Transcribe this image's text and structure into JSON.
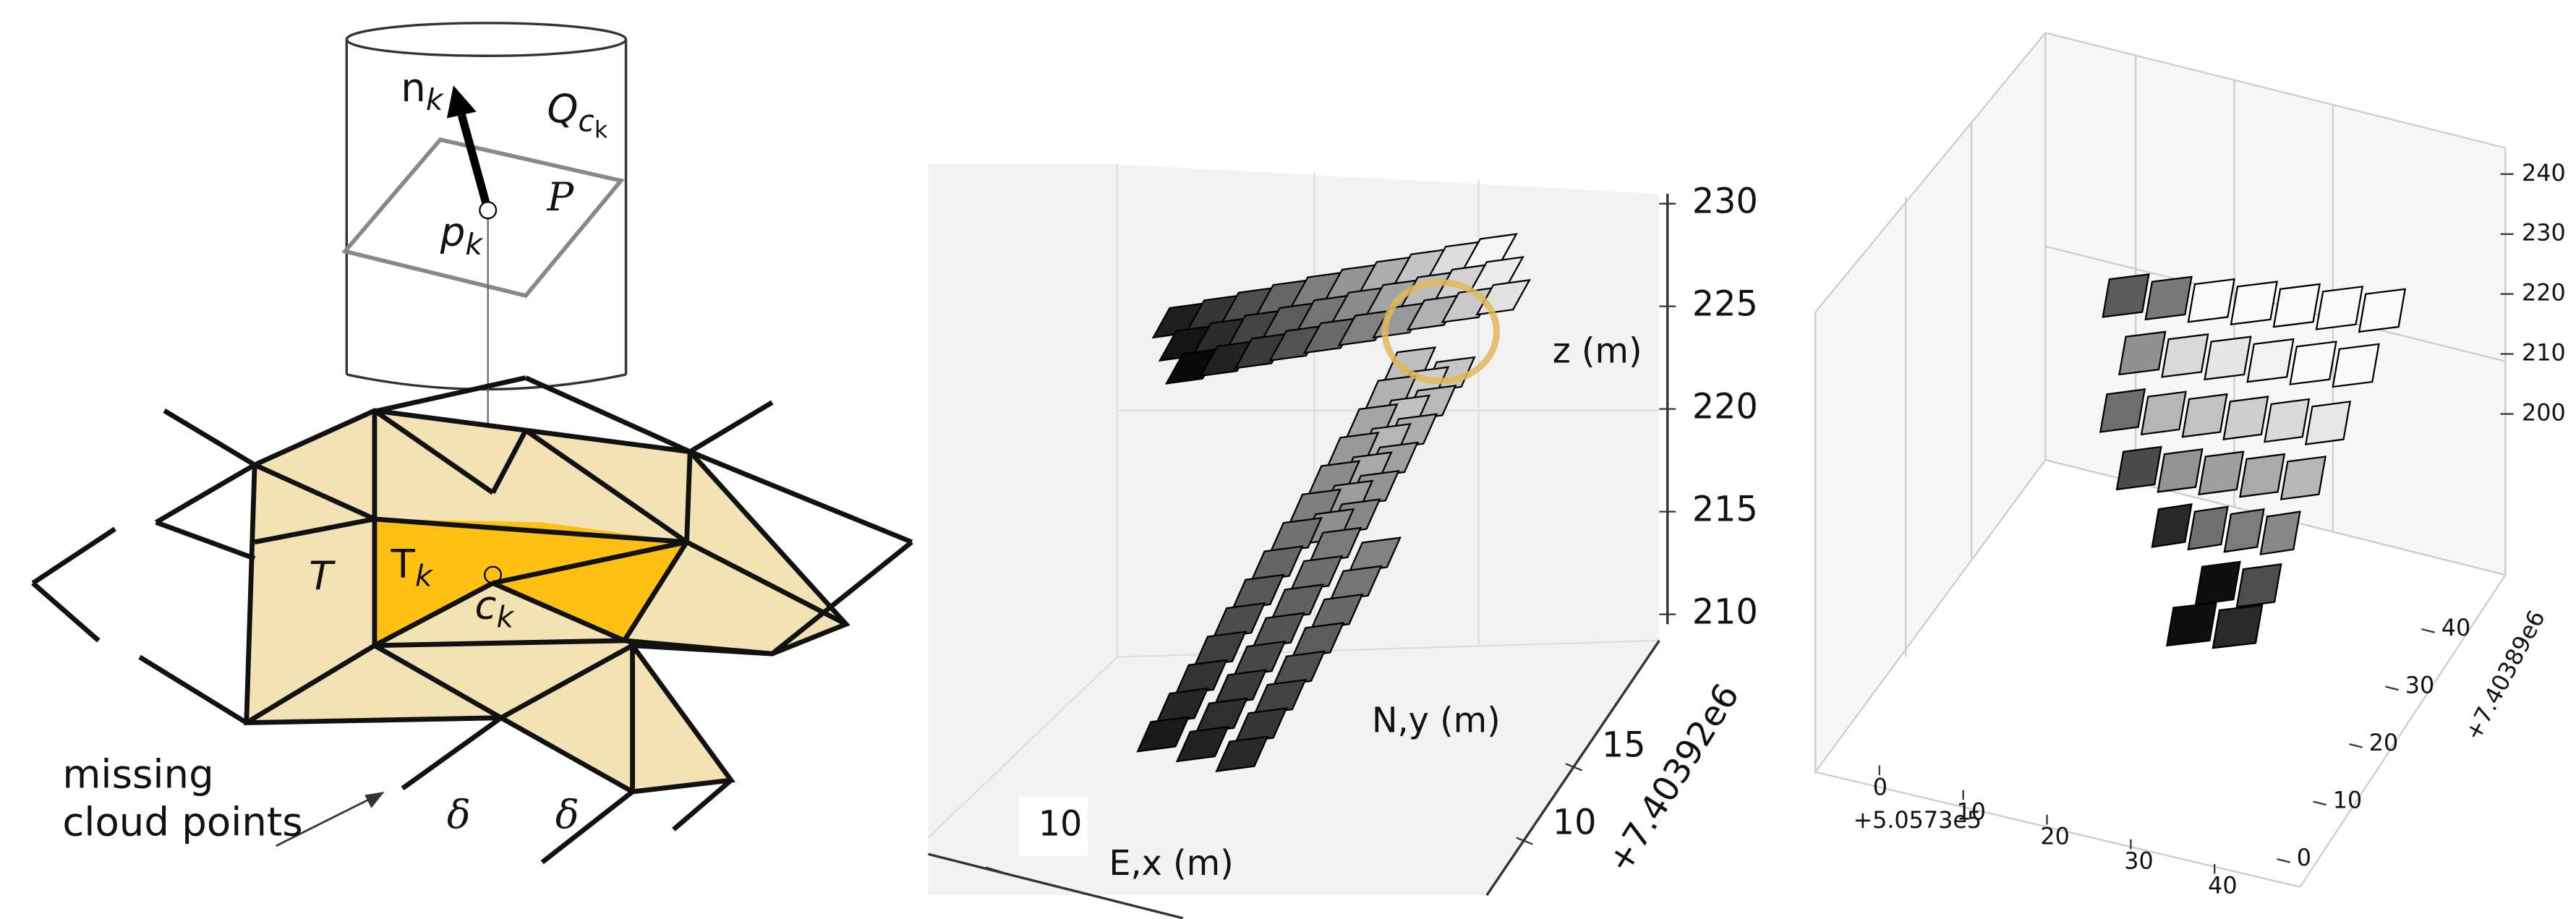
{
  "diagram": {
    "n_k": {
      "base": "n",
      "sub": "k"
    },
    "q": {
      "base": "Q",
      "sub": "c",
      "subsub": "k"
    },
    "p_k": {
      "base": "p",
      "sub": "k"
    },
    "plane": "P",
    "T": "T",
    "T_k": {
      "base": "T",
      "sub": "k"
    },
    "c_k": {
      "base": "c",
      "sub": "k"
    },
    "missing": [
      "missing",
      "cloud points"
    ],
    "delta": [
      "δ",
      "δ"
    ]
  },
  "plot1": {
    "zticks": [
      230,
      225,
      220,
      215,
      210
    ],
    "zlabel": "z (m)",
    "ylabel": "N,y (m)",
    "yticks": [
      15,
      10
    ],
    "yoffset": "+7.40392e6",
    "xticks": [
      10
    ],
    "xlabel": "E,x (m)"
  },
  "plot2": {
    "zticks": [
      240,
      230,
      220,
      210,
      200
    ],
    "yticks": [
      40,
      30,
      20,
      10,
      0
    ],
    "yoffset": "+7.40389e6",
    "xticks": [
      0,
      10,
      20,
      30,
      40
    ],
    "xoffset": "+5.0573e5"
  }
}
